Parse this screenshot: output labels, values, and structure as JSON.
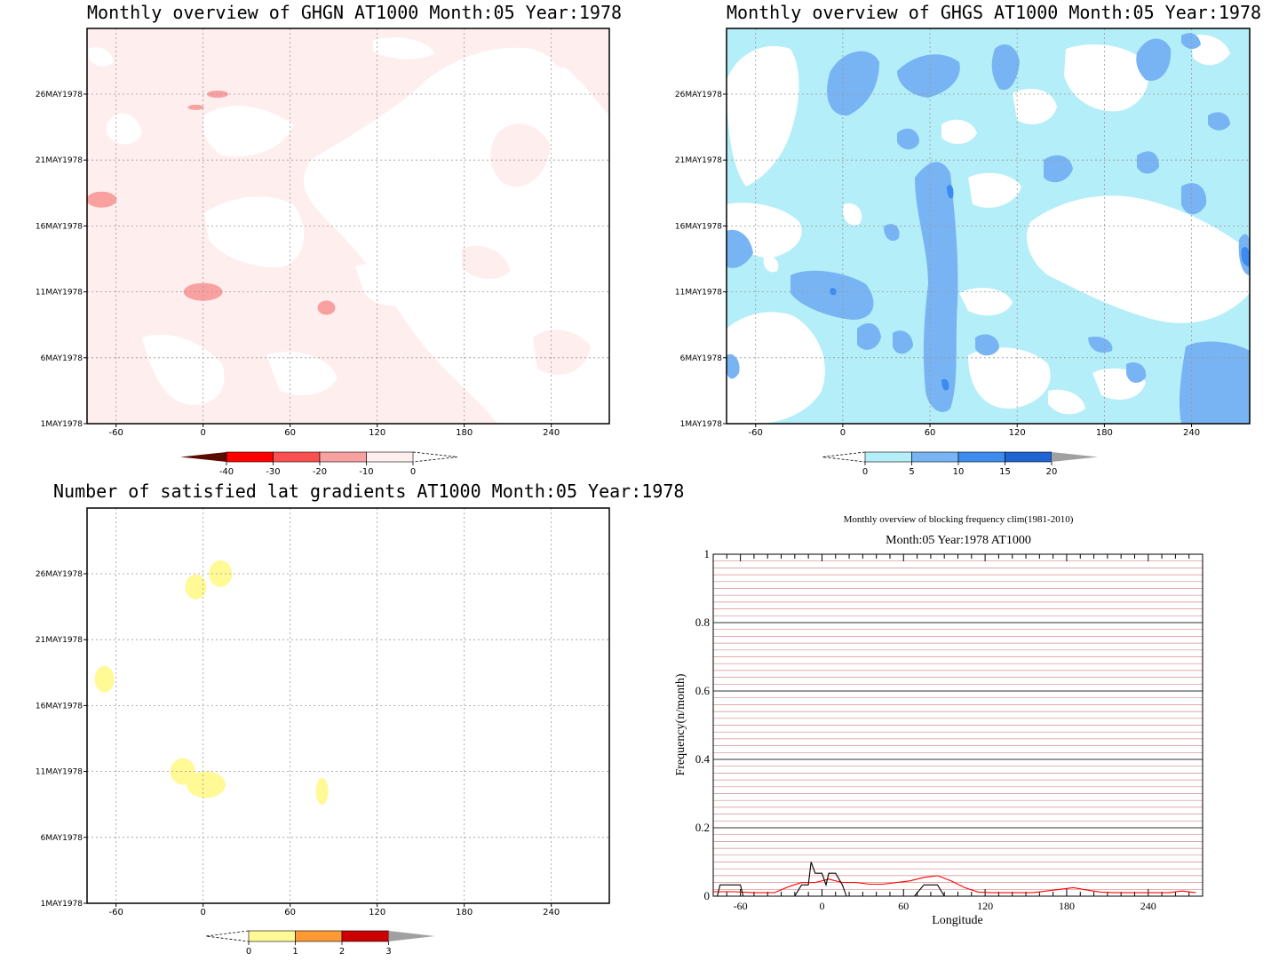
{
  "panels": {
    "ghgn": {
      "title": "Monthly overview of GHGN AT1000 Month:05 Year:1978"
    },
    "ghgs": {
      "title": "Monthly overview of GHGS AT1000 Month:05 Year:1978"
    },
    "lat": {
      "title": "Number of satisfied lat gradients AT1000 Month:05 Year:1978"
    },
    "freq": {
      "title": "Monthly overview of blocking frequency clim(1981-2010)",
      "subtitle": "Month:05 Year:1978  AT1000"
    }
  },
  "axes": {
    "x_ticks": [
      "-60",
      "0",
      "60",
      "120",
      "180",
      "240"
    ],
    "y_ticks": [
      "1MAY1978",
      "6MAY1978",
      "11MAY1978",
      "16MAY1978",
      "21MAY1978",
      "26MAY1978"
    ]
  },
  "colorbars": {
    "ghgn": {
      "labels": [
        "-40",
        "-30",
        "-20",
        "-10",
        "0"
      ],
      "colors": [
        "#5a0a00",
        "#ff0000",
        "#fb5050",
        "#f9a0a0",
        "#ffeeee"
      ]
    },
    "ghgs": {
      "labels": [
        "0",
        "5",
        "10",
        "15",
        "20"
      ],
      "colors": [
        "#b4eef8",
        "#78b4f4",
        "#3c8cf0",
        "#1e64d2",
        "#a0a0a0"
      ]
    },
    "lat": {
      "labels": [
        "0",
        "1",
        "2",
        "3"
      ],
      "colors": [
        "#fff996",
        "#ff9933",
        "#cc0000",
        "#a0a0a0"
      ]
    }
  },
  "chart_data": [
    {
      "type": "heatmap",
      "title": "Monthly overview of GHGN AT1000 Month:05 Year:1978",
      "xlim": [
        -80,
        280
      ],
      "x_ticks": [
        -60,
        0,
        60,
        120,
        180,
        240
      ],
      "y_ticks": [
        "1MAY1978",
        "6MAY1978",
        "11MAY1978",
        "16MAY1978",
        "21MAY1978",
        "26MAY1978"
      ],
      "levels": [
        -40,
        -30,
        -20,
        -10,
        0
      ],
      "patches": [
        {
          "lon": 10,
          "day": 26,
          "level": -10
        },
        {
          "lon": -5,
          "day": 25,
          "level": -10
        },
        {
          "lon": -70,
          "day": 18,
          "level": -10
        },
        {
          "lon": 0,
          "day": 11,
          "level": -10
        },
        {
          "lon": 85,
          "day": 9.8,
          "level": -10
        }
      ]
    },
    {
      "type": "heatmap",
      "title": "Monthly overview of GHGS AT1000 Month:05 Year:1978",
      "xlim": [
        -80,
        280
      ],
      "x_ticks": [
        -60,
        0,
        60,
        120,
        180,
        240
      ],
      "y_ticks": [
        "1MAY1978",
        "6MAY1978",
        "11MAY1978",
        "16MAY1978",
        "21MAY1978",
        "26MAY1978"
      ],
      "levels": [
        0,
        5,
        10,
        15,
        20
      ]
    },
    {
      "type": "heatmap",
      "title": "Number of satisfied lat gradients AT1000 Month:05 Year:1978",
      "xlim": [
        -80,
        280
      ],
      "x_ticks": [
        -60,
        0,
        60,
        120,
        180,
        240
      ],
      "y_ticks": [
        "1MAY1978",
        "6MAY1978",
        "11MAY1978",
        "16MAY1978",
        "21MAY1978",
        "26MAY1978"
      ],
      "levels": [
        0,
        1,
        2,
        3
      ],
      "patches": [
        {
          "lon": 12,
          "day": 26,
          "value": 1
        },
        {
          "lon": -5,
          "day": 25,
          "value": 1
        },
        {
          "lon": -68,
          "day": 18,
          "value": 1
        },
        {
          "lon": -14,
          "day": 11,
          "value": 1
        },
        {
          "lon": 2,
          "day": 10,
          "value": 1
        },
        {
          "lon": 82,
          "day": 9.5,
          "value": 1
        }
      ]
    },
    {
      "type": "line",
      "title": "Monthly overview of blocking frequency clim(1981-2010)",
      "subtitle": "Month:05 Year:1978  AT1000",
      "xlabel": "Longitude",
      "ylabel": "Frequency(n/month)",
      "xlim": [
        -80,
        280
      ],
      "ylim": [
        0,
        1
      ],
      "x_ticks": [
        -60,
        0,
        60,
        120,
        180,
        240
      ],
      "y_ticks": [
        0,
        0.2,
        0.4,
        0.6,
        0.8,
        1
      ],
      "y_tick_labels": [
        "0",
        "0.2",
        "0.4",
        "0.6",
        "0.8",
        "1"
      ],
      "series": [
        {
          "color": "#ff0000",
          "x": [
            -80,
            -65,
            -50,
            -35,
            -25,
            -15,
            -5,
            5,
            15,
            25,
            35,
            45,
            55,
            65,
            75,
            85,
            95,
            105,
            115,
            125,
            135,
            145,
            155,
            165,
            175,
            185,
            195,
            205,
            215,
            225,
            235,
            245,
            255,
            265,
            275
          ],
          "y": [
            0.013,
            0.013,
            0.01,
            0.01,
            0.027,
            0.04,
            0.04,
            0.05,
            0.04,
            0.04,
            0.035,
            0.035,
            0.04,
            0.045,
            0.055,
            0.06,
            0.045,
            0.025,
            0.012,
            0.01,
            0.01,
            0.01,
            0.01,
            0.015,
            0.02,
            0.025,
            0.018,
            0.012,
            0.01,
            0.01,
            0.01,
            0.01,
            0.01,
            0.015,
            0.01
          ]
        },
        {
          "color": "#000000",
          "x": [
            -80,
            -77,
            -75,
            -70,
            -62,
            -60,
            -58,
            -50,
            -25,
            -20,
            -15,
            -10,
            -8,
            -5,
            0,
            3,
            5,
            10,
            15,
            18,
            20,
            25,
            60,
            65,
            68,
            75,
            80,
            85,
            90,
            280
          ],
          "y": [
            0,
            0,
            0.033,
            0.033,
            0.033,
            0.033,
            0,
            0,
            0,
            0,
            0.033,
            0.033,
            0.1,
            0.067,
            0.067,
            0.033,
            0.067,
            0.067,
            0.033,
            0,
            0,
            0,
            0,
            0,
            0,
            0.033,
            0.033,
            0.033,
            0,
            0
          ]
        }
      ]
    }
  ]
}
